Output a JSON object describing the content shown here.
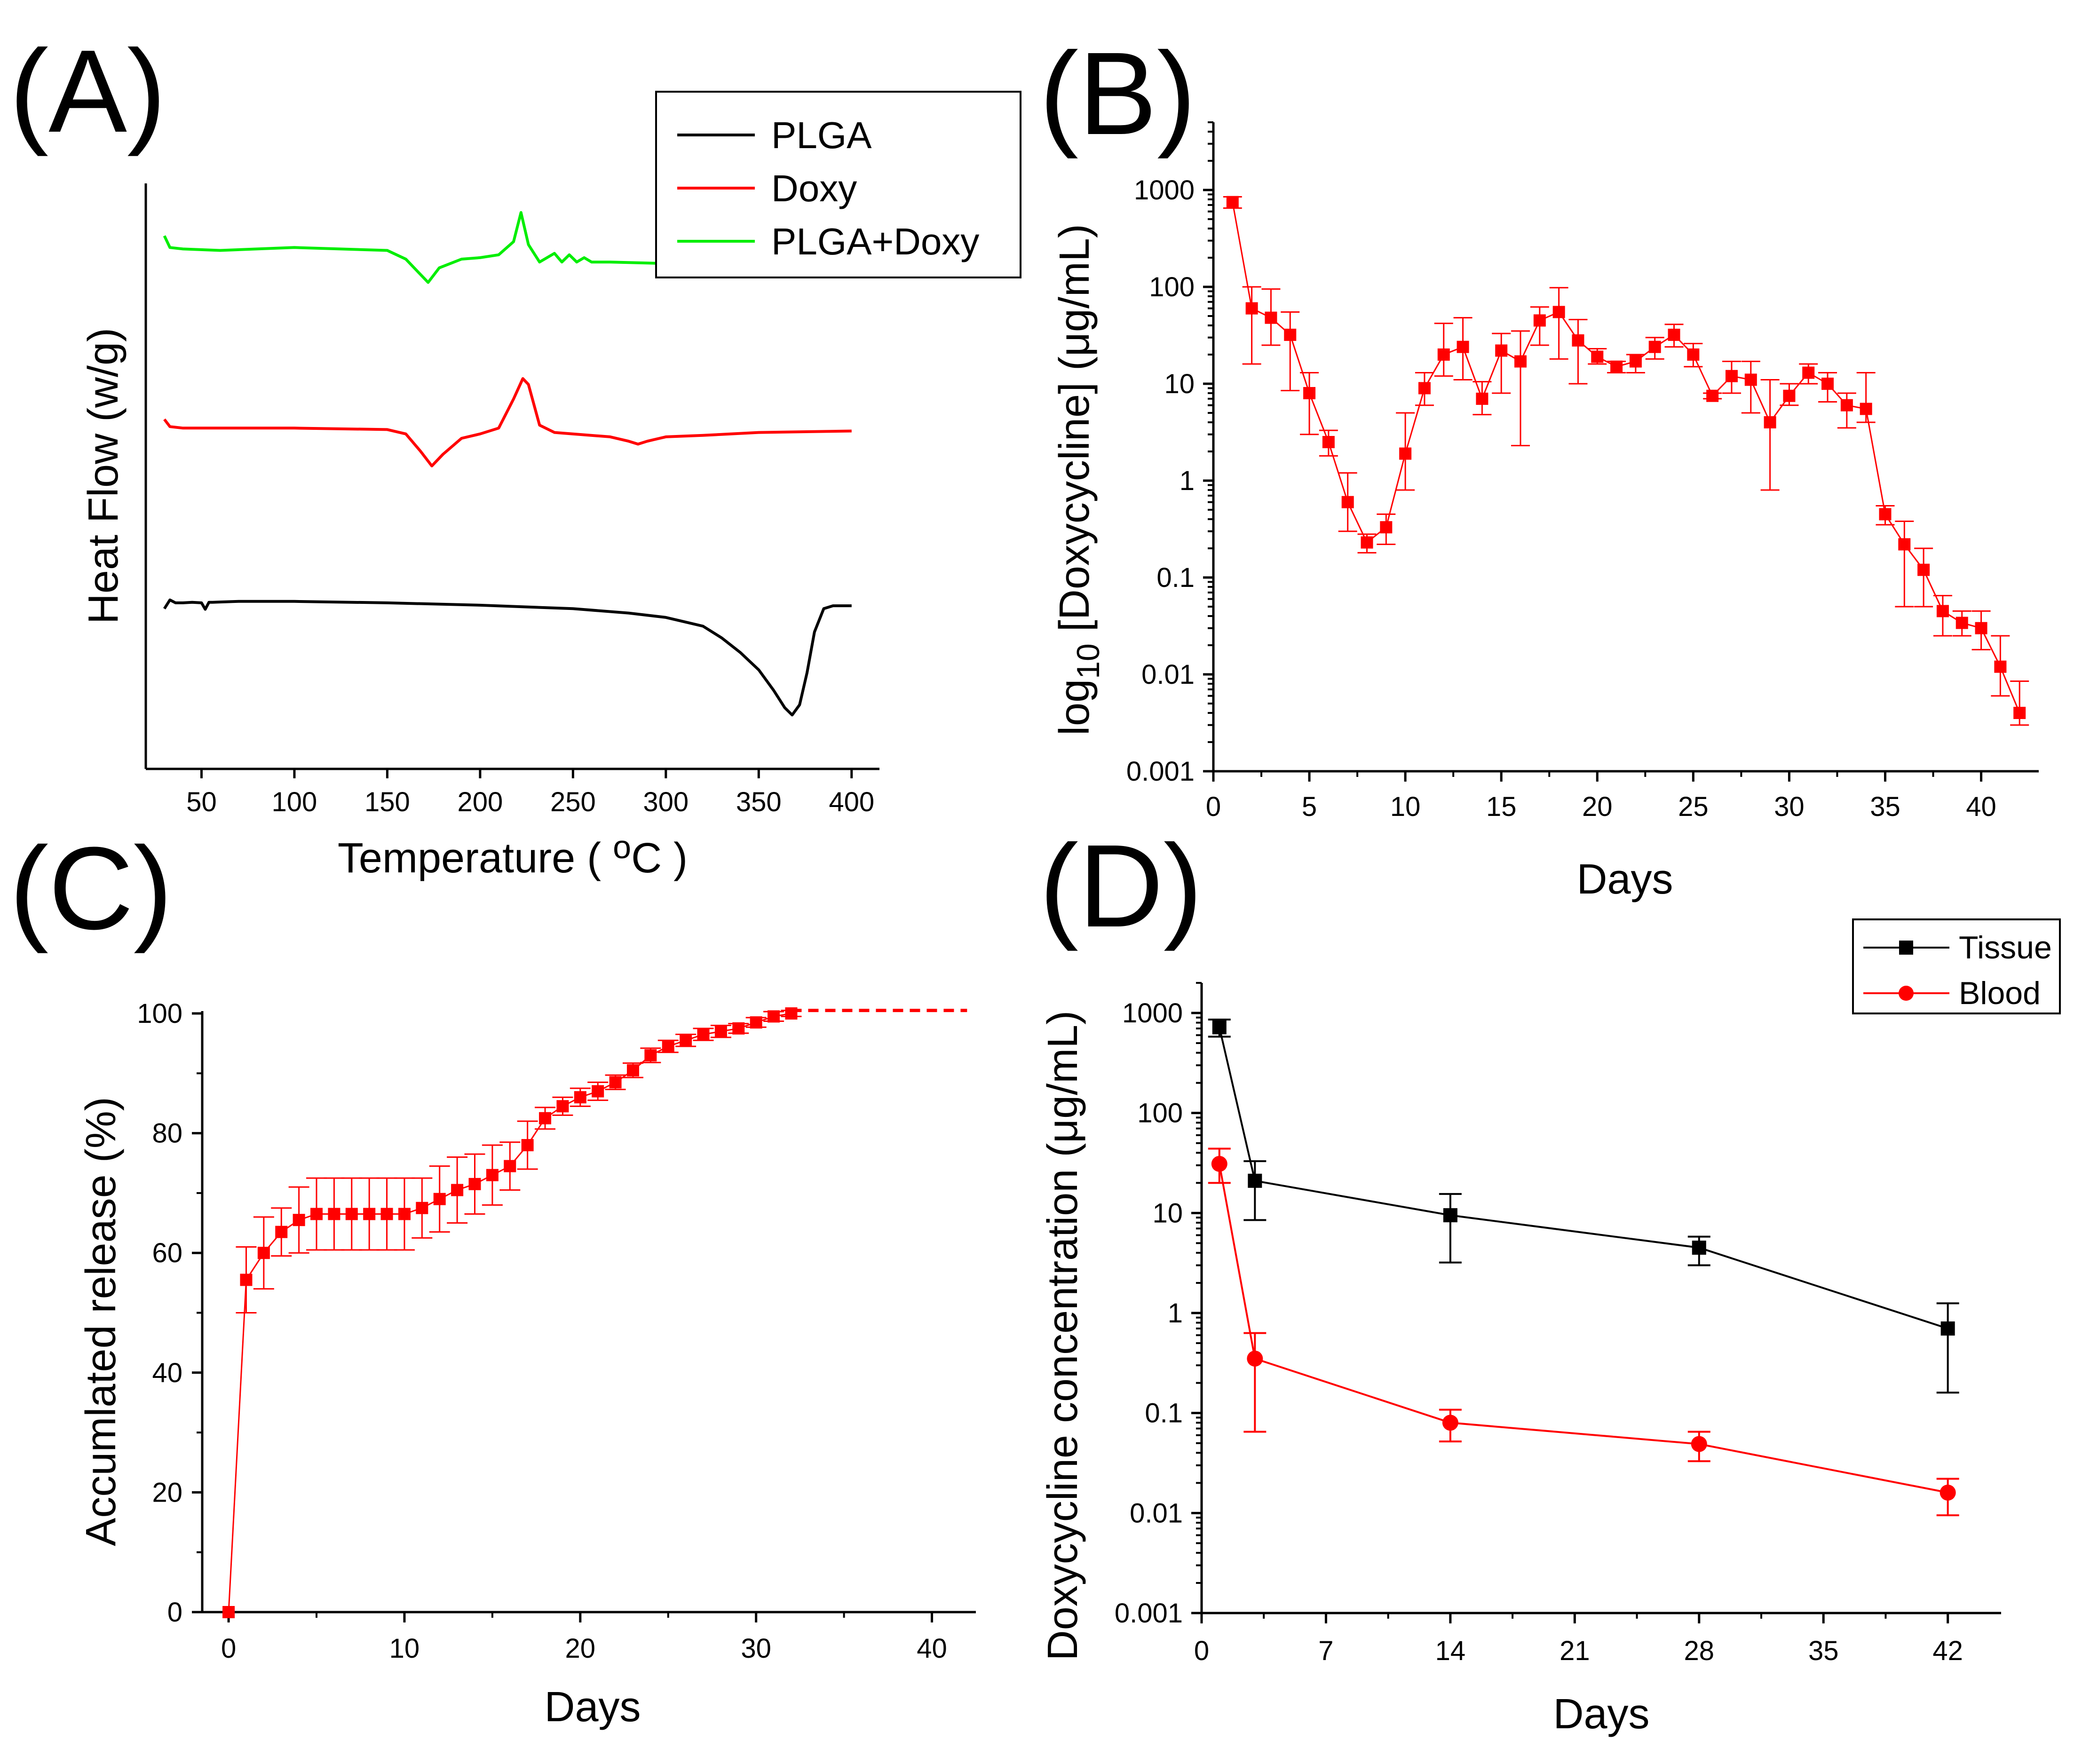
{
  "colors": {
    "black": "#000000",
    "red": "#ff0000",
    "green": "#00ee00"
  },
  "chart_data": [
    {
      "panel": "(A)",
      "type": "line",
      "xlabel": "Temperature ( oC )",
      "xlabel_main": "Temperature ( ",
      "xlabel_super": "o",
      "xlabel_tail": "C )",
      "ylabel": "Heat Flow (w/g)",
      "x_ticks": [
        "50",
        "100",
        "150",
        "200",
        "250",
        "300",
        "350",
        "400"
      ],
      "x_range": [
        20,
        415
      ],
      "y_ticks_shown": false,
      "legend": [
        "PLGA",
        "Doxy",
        "PLGA+Doxy"
      ],
      "legend_position": "top-right",
      "series": [
        {
          "name": "PLGA",
          "color": "black",
          "x": [
            30,
            33,
            36,
            40,
            45,
            50,
            52,
            54,
            56,
            60,
            70,
            100,
            150,
            200,
            250,
            280,
            300,
            310,
            320,
            330,
            340,
            350,
            358,
            364,
            368,
            372,
            376,
            380,
            385,
            390,
            400
          ],
          "y": [
            3.0,
            3.3,
            3.2,
            3.2,
            3.22,
            3.2,
            2.98,
            3.22,
            3.22,
            3.23,
            3.25,
            3.25,
            3.2,
            3.12,
            3.0,
            2.85,
            2.7,
            2.55,
            2.4,
            2.0,
            1.5,
            0.9,
            0.2,
            -0.4,
            -0.65,
            -0.3,
            0.8,
            2.2,
            3.0,
            3.1,
            3.1
          ]
        },
        {
          "name": "Doxy",
          "color": "red",
          "x": [
            30,
            33,
            40,
            60,
            100,
            150,
            160,
            168,
            174,
            180,
            190,
            200,
            210,
            218,
            223,
            226,
            232,
            240,
            250,
            270,
            280,
            285,
            290,
            300,
            320,
            350,
            400
          ],
          "y": [
            9.5,
            9.25,
            9.2,
            9.2,
            9.2,
            9.15,
            9.0,
            8.4,
            7.9,
            8.3,
            8.85,
            9.0,
            9.2,
            10.2,
            10.9,
            10.7,
            9.3,
            9.05,
            9.0,
            8.9,
            8.75,
            8.65,
            8.75,
            8.9,
            8.95,
            9.05,
            9.1
          ]
        },
        {
          "name": "PLGA+Doxy",
          "color": "green",
          "x": [
            30,
            33,
            40,
            60,
            100,
            150,
            160,
            166,
            172,
            178,
            190,
            200,
            210,
            218,
            222,
            226,
            232,
            240,
            244,
            248,
            252,
            256,
            260,
            270,
            300,
            330,
            350,
            360,
            380,
            400
          ],
          "y": [
            15.8,
            15.4,
            15.35,
            15.3,
            15.4,
            15.3,
            15.0,
            14.6,
            14.2,
            14.7,
            15.0,
            15.05,
            15.15,
            15.6,
            16.6,
            15.5,
            14.9,
            15.2,
            14.9,
            15.15,
            14.9,
            15.05,
            14.9,
            14.9,
            14.85,
            14.65,
            14.5,
            14.55,
            14.8,
            14.9
          ]
        }
      ]
    },
    {
      "panel": "(B)",
      "type": "scatter",
      "xlabel": "Days",
      "ylabel": "log10 [Doxycycline] (μg/mL)",
      "ylabel_log": "log",
      "ylabel_sub": "10",
      "ylabel_rest": "  [Doxycycline] (μg/mL)",
      "x_range": [
        0,
        43
      ],
      "y_range": [
        0.001,
        5000
      ],
      "y_scale": "log",
      "x_ticks": [
        "0",
        "5",
        "10",
        "15",
        "20",
        "25",
        "30",
        "35",
        "40"
      ],
      "y_ticks": [
        "0.001",
        "0.01",
        "0.1",
        "1",
        "10",
        "100",
        "1000"
      ],
      "series": [
        {
          "name": "Doxycycline",
          "color": "red",
          "marker": "square",
          "x": [
            1,
            2,
            3,
            4,
            5,
            6,
            7,
            8,
            9,
            10,
            11,
            12,
            13,
            14,
            15,
            16,
            17,
            18,
            19,
            20,
            21,
            22,
            23,
            24,
            25,
            26,
            27,
            28,
            29,
            30,
            31,
            32,
            33,
            34,
            35,
            36,
            37,
            38,
            39,
            40,
            41,
            42
          ],
          "y": [
            750,
            60,
            48,
            32,
            8,
            2.5,
            0.6,
            0.23,
            0.33,
            1.9,
            9,
            20,
            24,
            7,
            22,
            17,
            45,
            55,
            28,
            19,
            15,
            17,
            24,
            32,
            20,
            7.5,
            12,
            11,
            4,
            7.5,
            13,
            10,
            6,
            5.5,
            0.45,
            0.22,
            0.12,
            0.045,
            0.034,
            0.03,
            0.012,
            0.004
          ],
          "err_low": [
            650,
            16,
            25,
            8.5,
            3,
            1.8,
            0.3,
            0.18,
            0.22,
            0.8,
            6,
            12,
            11,
            4.8,
            8,
            2.3,
            25,
            18,
            10,
            16,
            13,
            13,
            18,
            24,
            15,
            7,
            8,
            5,
            0.8,
            6,
            10,
            6.5,
            3.5,
            4,
            0.35,
            0.05,
            0.05,
            0.025,
            0.025,
            0.018,
            0.006,
            0.003
          ],
          "err_high": [
            850,
            100,
            95,
            55,
            13,
            3.3,
            1.2,
            0.28,
            0.45,
            5,
            13,
            42,
            48,
            10.5,
            33,
            35,
            62,
            98,
            46,
            23,
            17,
            20,
            30,
            41,
            26,
            8,
            17,
            17,
            11,
            10,
            16,
            13,
            8,
            13,
            0.55,
            0.38,
            0.2,
            0.065,
            0.045,
            0.045,
            0.025,
            0.0085
          ]
        }
      ]
    },
    {
      "panel": "(C)",
      "type": "line",
      "xlabel": "Days",
      "ylabel": "Accumlated release (%)",
      "x_range": [
        -1.5,
        42.5
      ],
      "y_range": [
        0,
        100
      ],
      "x_ticks": [
        "0",
        "10",
        "20",
        "30",
        "40"
      ],
      "y_ticks": [
        "0",
        "20",
        "40",
        "60",
        "80",
        "100"
      ],
      "series": [
        {
          "name": "Accumulated release",
          "color": "red",
          "marker": "square",
          "x": [
            0,
            1,
            2,
            3,
            4,
            5,
            6,
            7,
            8,
            9,
            10,
            11,
            12,
            13,
            14,
            15,
            16,
            17,
            18,
            19,
            20,
            21,
            22,
            23,
            24,
            25,
            26,
            27,
            28,
            29,
            30,
            31,
            32
          ],
          "y": [
            0,
            55.5,
            60,
            63.5,
            65.5,
            66.5,
            66.5,
            66.5,
            66.5,
            66.5,
            66.5,
            67.5,
            69,
            70.5,
            71.5,
            73,
            74.5,
            78,
            82.5,
            84.5,
            86,
            87,
            88.5,
            90.5,
            93,
            94.5,
            95.5,
            96.5,
            97,
            97.5,
            98.5,
            99.5,
            100
          ],
          "err": [
            0,
            5.5,
            6,
            4,
            5.5,
            6,
            6,
            6,
            6,
            6,
            6,
            5,
            5.5,
            5.5,
            5,
            5,
            4,
            4,
            1.8,
            1.5,
            1.5,
            1.5,
            1.2,
            1.2,
            1.2,
            1,
            1,
            1,
            1,
            0.8,
            0.8,
            0.8,
            0.5
          ]
        },
        {
          "name": "Plateau (dashed)",
          "color": "red",
          "style": "dashed",
          "x": [
            32,
            42
          ],
          "y": [
            100.5,
            100.5
          ]
        }
      ]
    },
    {
      "panel": "(D)",
      "type": "line",
      "xlabel": "Days",
      "ylabel": "Doxycycline concentration (μg/mL)",
      "x_range": [
        0,
        45
      ],
      "y_range": [
        0.001,
        2000
      ],
      "y_scale": "log",
      "x_ticks": [
        "0",
        "7",
        "14",
        "21",
        "28",
        "35",
        "42"
      ],
      "y_ticks": [
        "0.001",
        "0.01",
        "0.1",
        "1",
        "10",
        "100",
        "1000"
      ],
      "legend": [
        "Tissue",
        "Blood"
      ],
      "legend_position": "top-right",
      "series": [
        {
          "name": "Tissue",
          "color": "black",
          "marker": "square",
          "x": [
            1,
            3,
            14,
            28,
            42
          ],
          "y": [
            720,
            21,
            9.5,
            4.5,
            0.7
          ],
          "err_low": [
            580,
            8.5,
            3.2,
            3.0,
            0.16
          ],
          "err_high": [
            860,
            33,
            15.5,
            5.8,
            1.25
          ]
        },
        {
          "name": "Blood",
          "color": "red",
          "marker": "circle",
          "x": [
            1,
            3,
            14,
            28,
            42
          ],
          "y": [
            31,
            0.35,
            0.08,
            0.049,
            0.016
          ],
          "err_low": [
            20,
            0.065,
            0.052,
            0.033,
            0.0095
          ],
          "err_high": [
            44,
            0.63,
            0.108,
            0.065,
            0.022
          ]
        }
      ]
    }
  ]
}
